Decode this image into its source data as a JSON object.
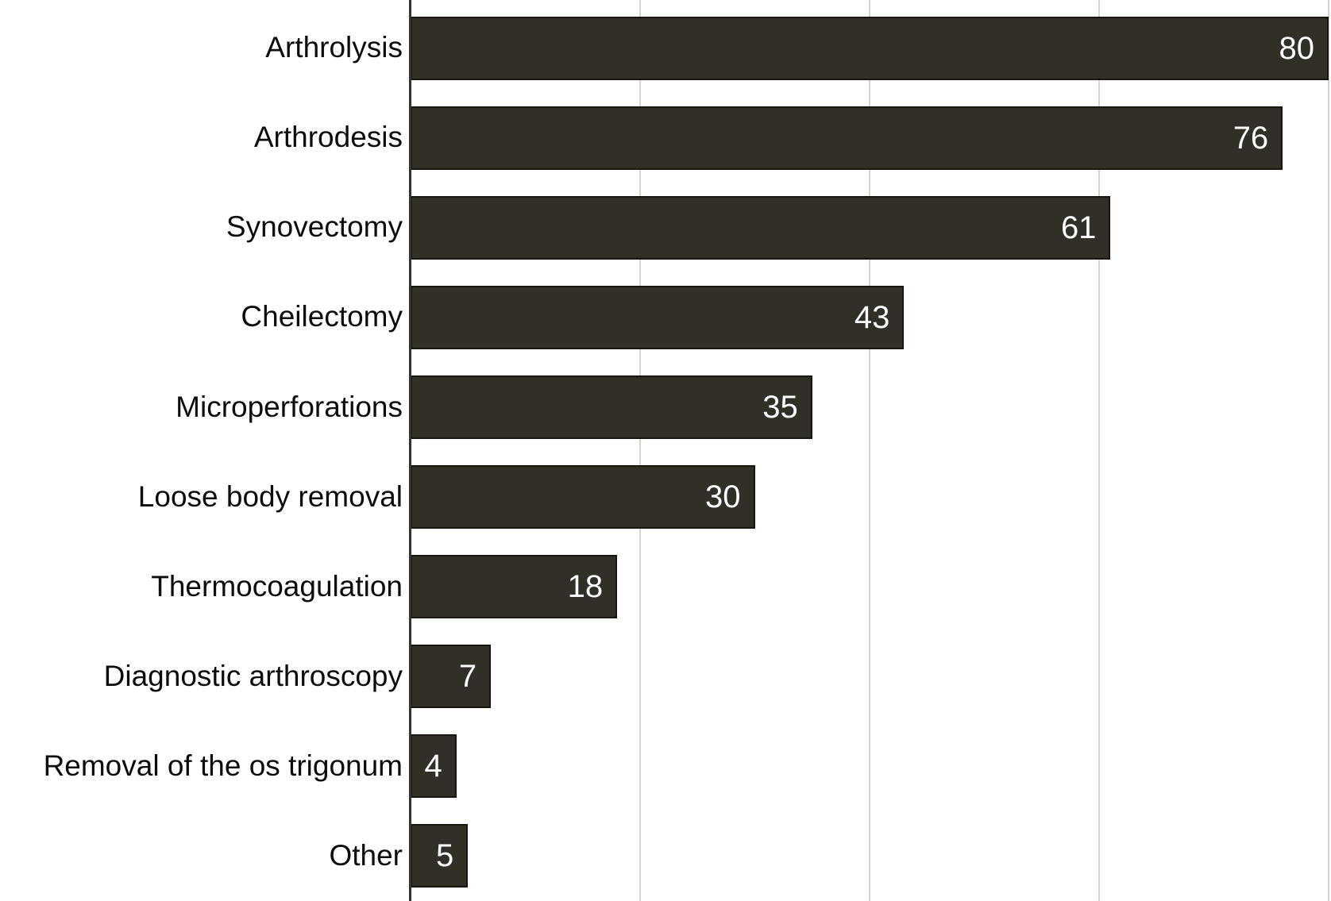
{
  "chart_data": {
    "type": "bar",
    "orientation": "horizontal",
    "title": "",
    "xlabel": "",
    "ylabel": "",
    "categories": [
      "Arthrolysis",
      "Arthrodesis",
      "Synovectomy",
      "Cheilectomy",
      "Microperforations",
      "Loose body removal",
      "Thermocoagulation",
      "Diagnostic arthroscopy",
      "Removal of the os trigonum",
      "Other"
    ],
    "values": [
      80,
      76,
      61,
      43,
      35,
      30,
      18,
      7,
      4,
      5
    ],
    "xlim": [
      0,
      80
    ],
    "gridlines_x": [
      20,
      40,
      60,
      80
    ],
    "grid": "vertical-only",
    "legend": "none",
    "value_label_position": "inside-end",
    "colors": {
      "bar_fill": "#312f28",
      "bar_border": "#17160f",
      "value_text": "#ffffff",
      "category_text": "#0d0d0d",
      "gridline": "#d3d3d1",
      "axis_line": "#33322e",
      "background": "#ffffff"
    }
  }
}
